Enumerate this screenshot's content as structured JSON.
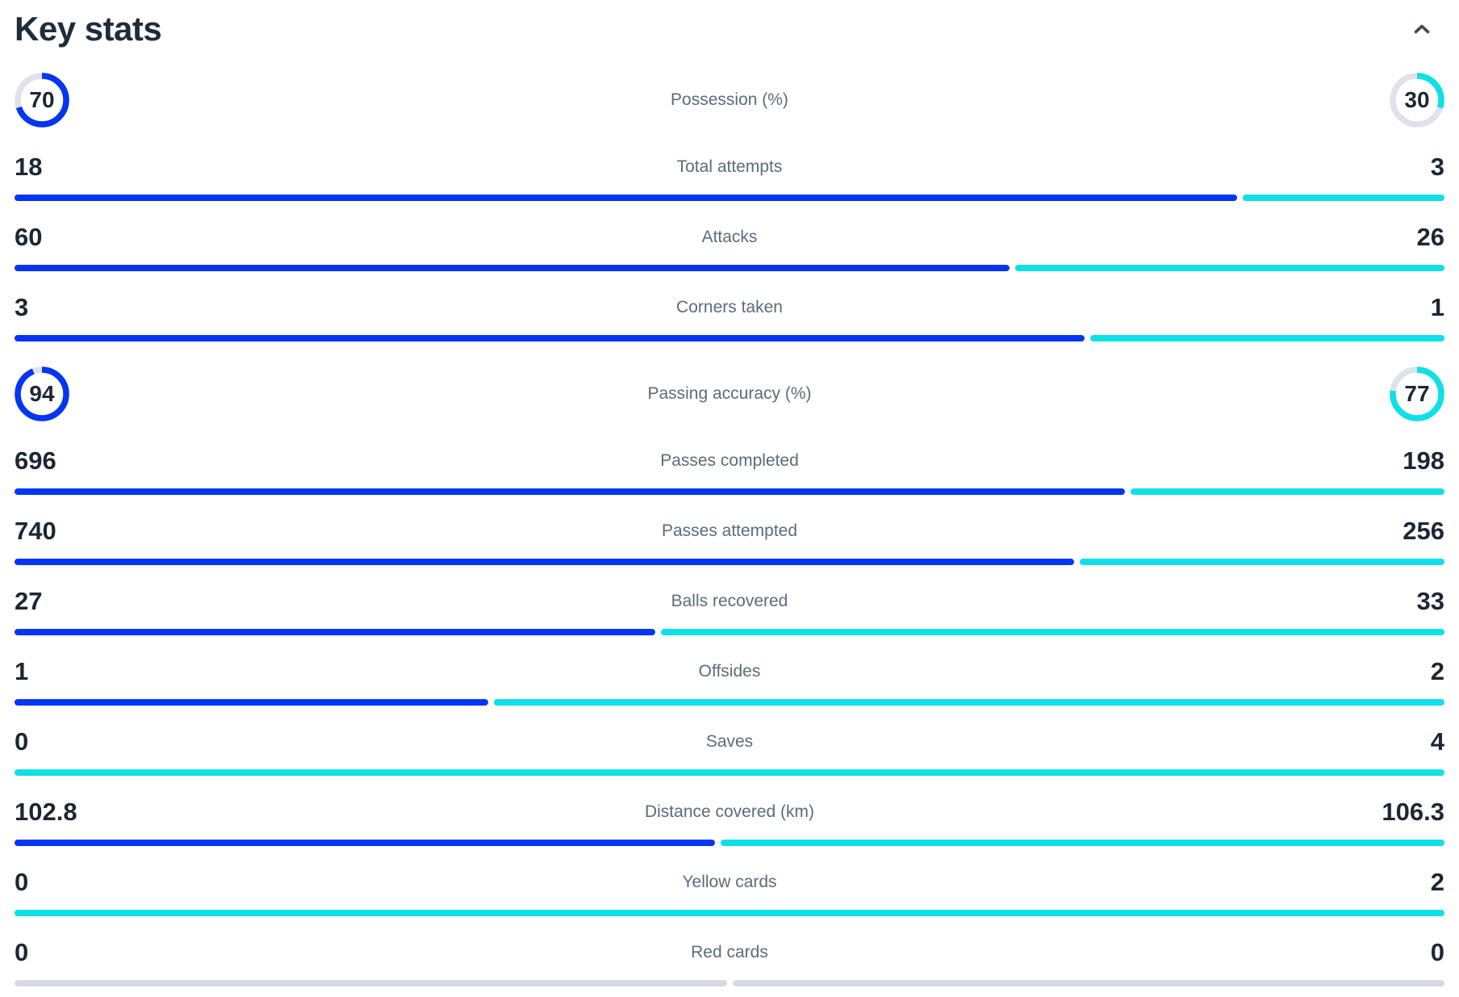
{
  "header": {
    "title": "Key stats"
  },
  "icons": {
    "collapse": "chevron-up-icon"
  },
  "colors": {
    "home": "#0435f2",
    "away": "#0ee0e6",
    "neutral": "#d7dae3",
    "track": "#dfe2ea",
    "text_dark": "#1b2733",
    "text_label": "#5c6b7a",
    "chevron": "#3e4a57"
  },
  "rows": [
    {
      "type": "donut",
      "label": "Possession (%)",
      "left": "70",
      "right": "30",
      "left_value": 70,
      "right_value": 30
    },
    {
      "type": "bar",
      "label": "Total attempts",
      "left": "18",
      "right": "3",
      "left_value": 18,
      "right_value": 3
    },
    {
      "type": "bar",
      "label": "Attacks",
      "left": "60",
      "right": "26",
      "left_value": 60,
      "right_value": 26
    },
    {
      "type": "bar",
      "label": "Corners taken",
      "left": "3",
      "right": "1",
      "left_value": 3,
      "right_value": 1
    },
    {
      "type": "donut",
      "label": "Passing accuracy (%)",
      "left": "94",
      "right": "77",
      "left_value": 94,
      "right_value": 77
    },
    {
      "type": "bar",
      "label": "Passes completed",
      "left": "696",
      "right": "198",
      "left_value": 696,
      "right_value": 198
    },
    {
      "type": "bar",
      "label": "Passes attempted",
      "left": "740",
      "right": "256",
      "left_value": 740,
      "right_value": 256
    },
    {
      "type": "bar",
      "label": "Balls recovered",
      "left": "27",
      "right": "33",
      "left_value": 27,
      "right_value": 33
    },
    {
      "type": "bar",
      "label": "Offsides",
      "left": "1",
      "right": "2",
      "left_value": 1,
      "right_value": 2
    },
    {
      "type": "bar",
      "label": "Saves",
      "left": "0",
      "right": "4",
      "left_value": 0,
      "right_value": 4
    },
    {
      "type": "bar",
      "label": "Distance covered (km)",
      "left": "102.8",
      "right": "106.3",
      "left_value": 102.8,
      "right_value": 106.3
    },
    {
      "type": "bar",
      "label": "Yellow cards",
      "left": "0",
      "right": "2",
      "left_value": 0,
      "right_value": 2
    },
    {
      "type": "bar",
      "label": "Red cards",
      "left": "0",
      "right": "0",
      "left_value": 0,
      "right_value": 0
    }
  ],
  "chart_data": {
    "type": "bar",
    "title": "Key stats",
    "orientation": "horizontal-comparison",
    "categories": [
      "Possession (%)",
      "Total attempts",
      "Attacks",
      "Corners taken",
      "Passing accuracy (%)",
      "Passes completed",
      "Passes attempted",
      "Balls recovered",
      "Offsides",
      "Saves",
      "Distance covered (km)",
      "Yellow cards",
      "Red cards"
    ],
    "series": [
      {
        "name": "home",
        "color": "#0435f2",
        "values": [
          70,
          18,
          60,
          3,
          94,
          696,
          740,
          27,
          1,
          0,
          102.8,
          0,
          0
        ]
      },
      {
        "name": "away",
        "color": "#0ee0e6",
        "values": [
          30,
          3,
          26,
          1,
          77,
          198,
          256,
          33,
          2,
          4,
          106.3,
          2,
          0
        ]
      }
    ],
    "donut_categories": [
      "Possession (%)",
      "Passing accuracy (%)"
    ],
    "bar_rule": "left segment width = left/(left+right); zero-vs-zero renders two neutral gray halves; zero-vs-n renders full bar of the non-zero side",
    "legend_position": "none",
    "grid": false
  }
}
